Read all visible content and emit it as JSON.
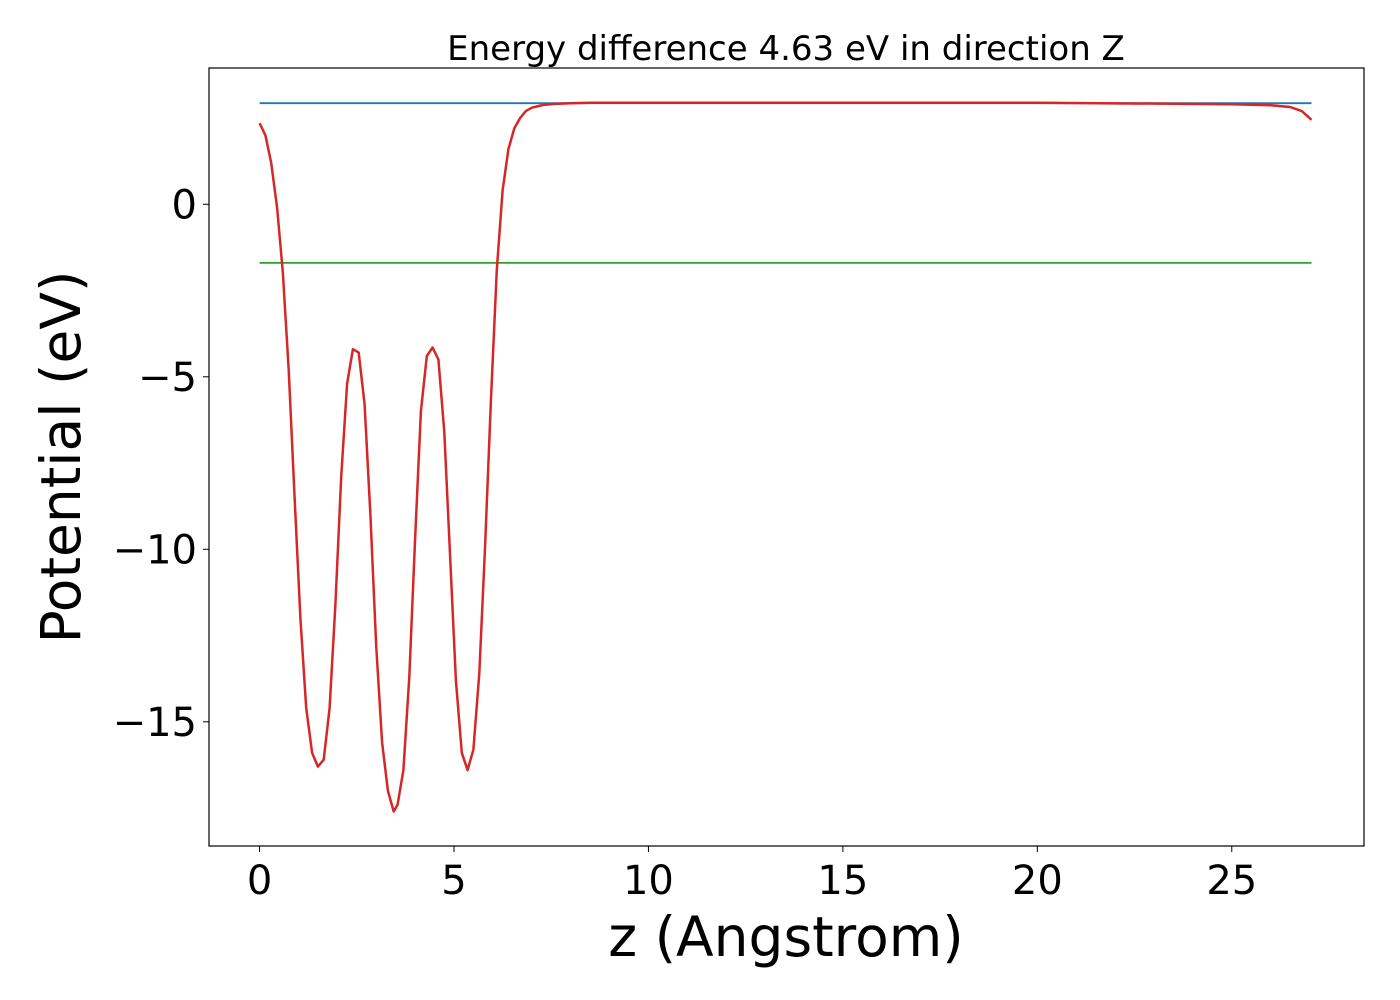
{
  "chart_data": {
    "type": "line",
    "title": "Energy difference 4.63 eV in direction Z",
    "xlabel": "z (Angstrom)",
    "ylabel": "Potential (eV)",
    "xlim": [
      -1.3,
      28.4
    ],
    "ylim": [
      -18.6,
      3.95
    ],
    "xticks": [
      0,
      5,
      10,
      15,
      20,
      25
    ],
    "xtick_labels": [
      "0",
      "5",
      "10",
      "15",
      "20",
      "25"
    ],
    "yticks": [
      0,
      -5,
      -10,
      -15
    ],
    "ytick_labels": [
      "0",
      "−5",
      "−10",
      "−15"
    ],
    "grid": false,
    "series": [
      {
        "color": "#1f77b4",
        "x": [
          0,
          27.05
        ],
        "y": [
          2.93,
          2.93
        ]
      },
      {
        "color": "#2ca02c",
        "x": [
          0,
          27.05
        ],
        "y": [
          -1.7,
          -1.7
        ]
      },
      {
        "color": "#d62728",
        "x": [
          0,
          0.15,
          0.3,
          0.45,
          0.6,
          0.75,
          0.9,
          1.05,
          1.2,
          1.35,
          1.5,
          1.65,
          1.8,
          1.95,
          2.1,
          2.25,
          2.4,
          2.55,
          2.7,
          2.85,
          3.0,
          3.15,
          3.3,
          3.45,
          3.55,
          3.7,
          3.85,
          4.0,
          4.15,
          4.3,
          4.45,
          4.6,
          4.75,
          4.9,
          5.05,
          5.2,
          5.35,
          5.5,
          5.65,
          5.8,
          5.95,
          6.1,
          6.25,
          6.4,
          6.55,
          6.7,
          6.85,
          7.0,
          7.3,
          7.6,
          8.0,
          8.5,
          9.0,
          10.0,
          15.0,
          20.0,
          25.0,
          26.0,
          26.5,
          26.8,
          27.05
        ],
        "y": [
          2.35,
          2.0,
          1.2,
          -0.1,
          -2.0,
          -4.8,
          -8.5,
          -12.0,
          -14.6,
          -15.9,
          -16.3,
          -16.1,
          -14.6,
          -11.6,
          -7.9,
          -5.2,
          -4.2,
          -4.3,
          -5.8,
          -9.0,
          -12.8,
          -15.6,
          -17.0,
          -17.6,
          -17.4,
          -16.4,
          -13.7,
          -9.7,
          -6.0,
          -4.4,
          -4.15,
          -4.5,
          -6.6,
          -10.2,
          -13.8,
          -15.9,
          -16.4,
          -15.8,
          -13.6,
          -9.9,
          -5.7,
          -1.9,
          0.4,
          1.6,
          2.2,
          2.5,
          2.7,
          2.8,
          2.88,
          2.91,
          2.93,
          2.94,
          2.94,
          2.94,
          2.94,
          2.94,
          2.9,
          2.87,
          2.82,
          2.7,
          2.45
        ]
      }
    ]
  }
}
